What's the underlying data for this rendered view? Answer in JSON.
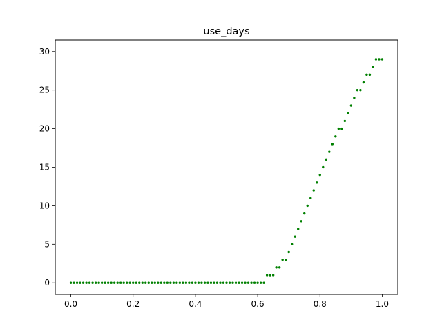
{
  "chart_data": {
    "type": "scatter",
    "title": "use_days",
    "xlabel": "",
    "ylabel": "",
    "xlim": [
      -0.05,
      1.05
    ],
    "ylim": [
      -1.5,
      31.5
    ],
    "xticks": [
      0.0,
      0.2,
      0.4,
      0.6,
      0.8,
      1.0
    ],
    "xtick_labels": [
      "0.0",
      "0.2",
      "0.4",
      "0.6",
      "0.8",
      "1.0"
    ],
    "yticks": [
      0,
      5,
      10,
      15,
      20,
      25,
      30
    ],
    "ytick_labels": [
      "0",
      "5",
      "10",
      "15",
      "20",
      "25",
      "30"
    ],
    "grid": false,
    "legend": "none",
    "marker_color": "#008000",
    "x": [
      0.0,
      0.01,
      0.02,
      0.03,
      0.04,
      0.05,
      0.06,
      0.07,
      0.08,
      0.09,
      0.1,
      0.11,
      0.12,
      0.13,
      0.14,
      0.15,
      0.16,
      0.17,
      0.18,
      0.19,
      0.2,
      0.21,
      0.22,
      0.23,
      0.24,
      0.25,
      0.26,
      0.27,
      0.28,
      0.29,
      0.3,
      0.31,
      0.32,
      0.33,
      0.34,
      0.35,
      0.36,
      0.37,
      0.38,
      0.39,
      0.4,
      0.41,
      0.42,
      0.43,
      0.44,
      0.45,
      0.46,
      0.47,
      0.48,
      0.49,
      0.5,
      0.51,
      0.52,
      0.53,
      0.54,
      0.55,
      0.56,
      0.57,
      0.58,
      0.59,
      0.6,
      0.61,
      0.62,
      0.63,
      0.64,
      0.65,
      0.66,
      0.67,
      0.68,
      0.69,
      0.7,
      0.71,
      0.72,
      0.73,
      0.74,
      0.75,
      0.76,
      0.77,
      0.78,
      0.79,
      0.8,
      0.81,
      0.82,
      0.83,
      0.84,
      0.85,
      0.86,
      0.87,
      0.88,
      0.89,
      0.9,
      0.91,
      0.92,
      0.93,
      0.94,
      0.95,
      0.96,
      0.97,
      0.98,
      0.99,
      1.0
    ],
    "y": [
      0,
      0,
      0,
      0,
      0,
      0,
      0,
      0,
      0,
      0,
      0,
      0,
      0,
      0,
      0,
      0,
      0,
      0,
      0,
      0,
      0,
      0,
      0,
      0,
      0,
      0,
      0,
      0,
      0,
      0,
      0,
      0,
      0,
      0,
      0,
      0,
      0,
      0,
      0,
      0,
      0,
      0,
      0,
      0,
      0,
      0,
      0,
      0,
      0,
      0,
      0,
      0,
      0,
      0,
      0,
      0,
      0,
      0,
      0,
      0,
      0,
      0,
      0,
      1,
      1,
      1,
      2,
      2,
      3,
      3,
      4,
      5,
      6,
      7,
      8,
      9,
      10,
      11,
      12,
      13,
      14,
      15,
      16,
      17,
      18,
      19,
      20,
      20,
      21,
      22,
      23,
      24,
      25,
      25,
      26,
      27,
      27,
      28,
      29,
      29,
      29
    ]
  }
}
